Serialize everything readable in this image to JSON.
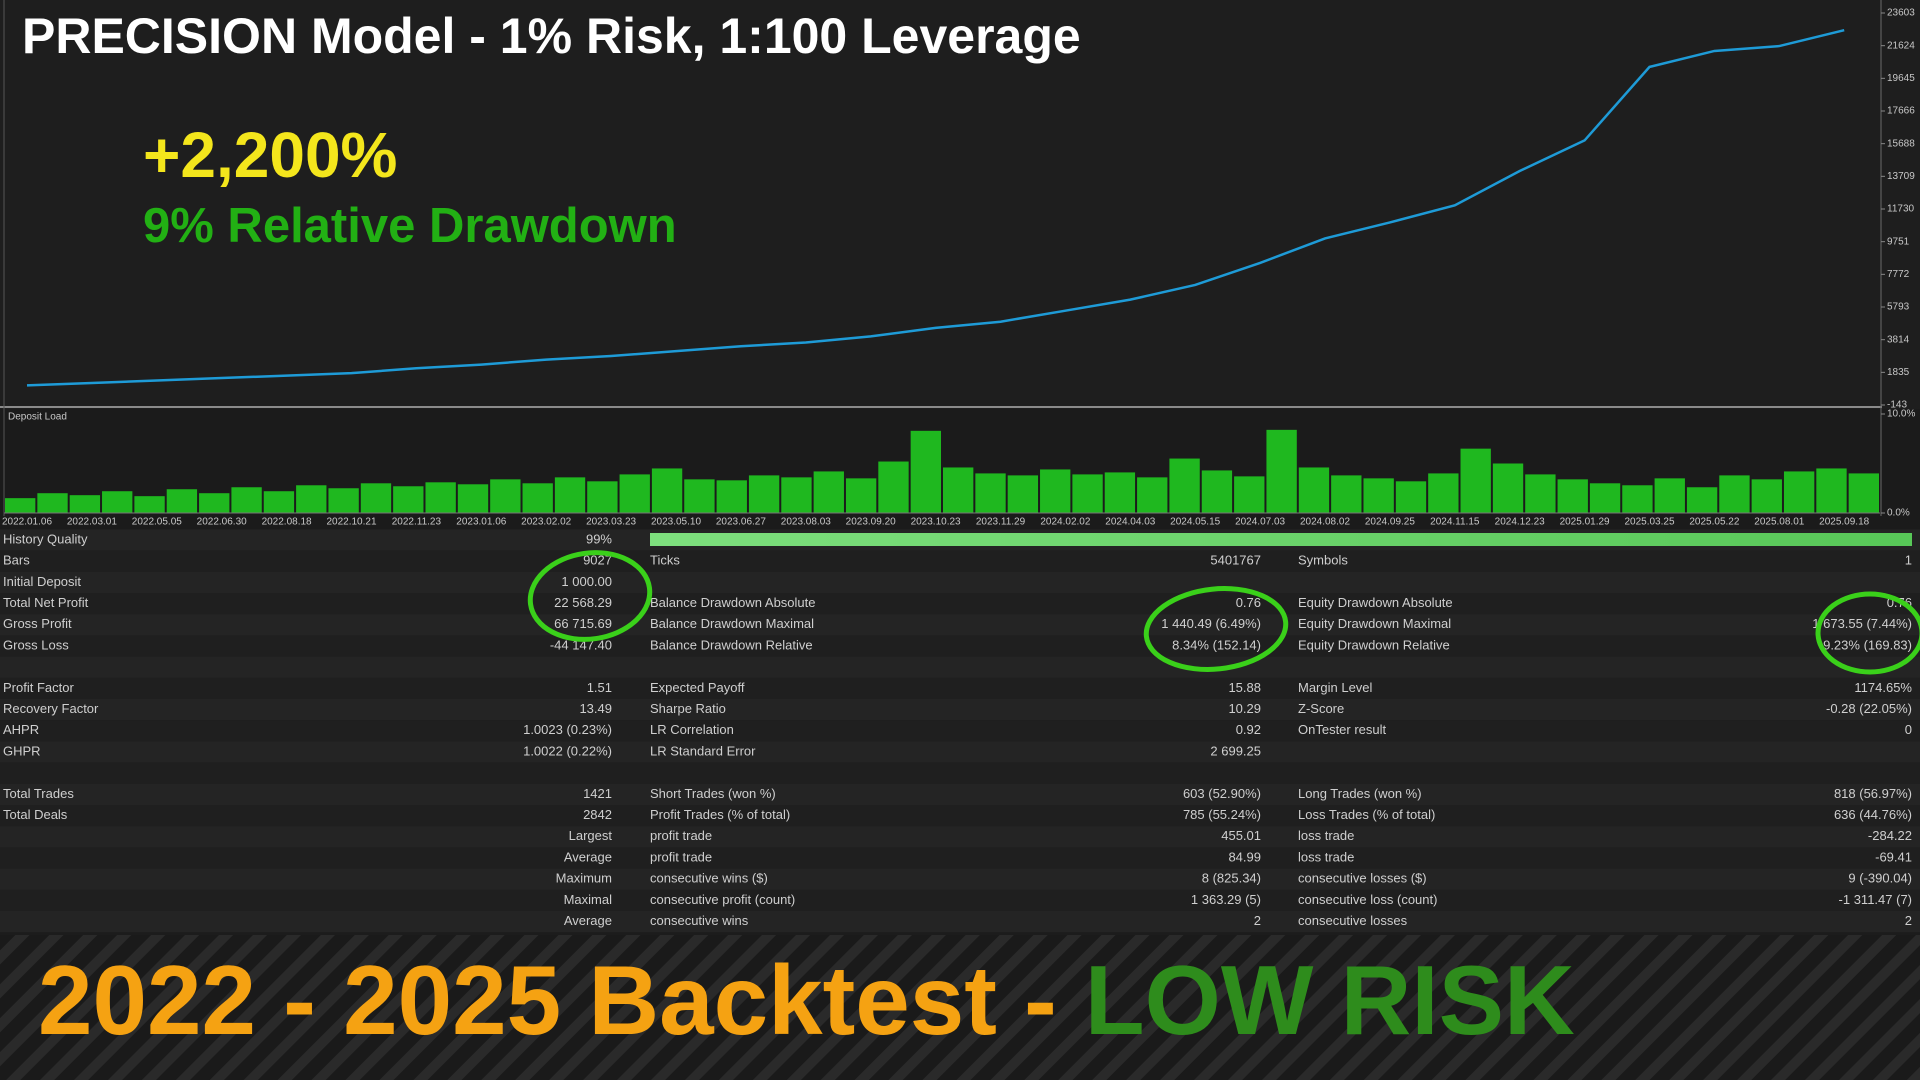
{
  "header": {
    "title": "PRECISION Model - 1% Risk, 1:100 Leverage",
    "gain": "+2,200%",
    "drawdown": "9% Relative Drawdown"
  },
  "balance_chart": {
    "type": "line",
    "color": "#1e9bd7",
    "x": [
      "2022.01.06",
      "2022.03.01",
      "2022.05.05",
      "2022.06.30",
      "2022.08.18",
      "2022.10.21",
      "2022.11.23",
      "2023.01.06",
      "2023.02.02",
      "2023.03.23",
      "2023.05.10",
      "2023.06.27",
      "2023.08.03",
      "2023.09.20",
      "2023.10.23",
      "2023.11.29",
      "2024.02.02",
      "2024.04.03",
      "2024.05.15",
      "2024.07.03",
      "2024.08.02",
      "2024.09.25",
      "2024.11.15",
      "2024.12.23",
      "2025.01.29",
      "2025.03.25",
      "2025.05.22",
      "2025.08.01",
      "2025.09.18"
    ],
    "values": [
      1044,
      1193,
      1341,
      1490,
      1638,
      1786,
      2083,
      2306,
      2603,
      2825,
      3122,
      3419,
      3642,
      4012,
      4532,
      4903,
      5571,
      6239,
      7129,
      8465,
      9949,
      10914,
      11953,
      14031,
      15886,
      20338,
      21303,
      21600,
      22564
    ],
    "ylim": [
      -143,
      23603
    ],
    "yticks": [
      23603,
      21624,
      19645,
      17666,
      15688,
      13709,
      11730,
      9751,
      7772,
      5793,
      3814,
      1835,
      -143
    ]
  },
  "deposit_load": {
    "type": "bar",
    "label": "Deposit Load",
    "color": "#1fb81f",
    "values": [
      1.5,
      2.0,
      1.8,
      2.2,
      1.7,
      2.4,
      2.0,
      2.6,
      2.2,
      2.8,
      2.5,
      3.0,
      2.7,
      3.1,
      2.9,
      3.4,
      3.0,
      3.6,
      3.2,
      3.9,
      4.5,
      3.4,
      3.3,
      3.8,
      3.6,
      4.2,
      3.5,
      5.2,
      8.3,
      4.6,
      4.0,
      3.8,
      4.4,
      3.9,
      4.1,
      3.6,
      5.5,
      4.3,
      3.7,
      8.4,
      4.6,
      3.8,
      3.5,
      3.2,
      4.0,
      6.5,
      5.0,
      3.9,
      3.4,
      3.0,
      2.8,
      3.5,
      2.6,
      3.8,
      3.4,
      4.2,
      4.5,
      4.0
    ],
    "ylim": [
      0,
      10
    ],
    "yticks": [
      {
        "value": 10,
        "label": "10.0%"
      },
      {
        "value": 0,
        "label": "0.0%"
      }
    ]
  },
  "report": {
    "rows": [
      [
        "History Quality",
        "99%"
      ],
      [
        "Bars",
        "9027",
        "Ticks",
        "5401767",
        "Symbols",
        "1"
      ],
      [
        "Initial Deposit",
        "1 000.00"
      ],
      [
        "Total Net Profit",
        "22 568.29",
        "Balance Drawdown Absolute",
        "0.76",
        "Equity Drawdown Absolute",
        "0.76"
      ],
      [
        "Gross Profit",
        "66 715.69",
        "Balance Drawdown Maximal",
        "1 440.49 (6.49%)",
        "Equity Drawdown Maximal",
        "1 673.55 (7.44%)"
      ],
      [
        "Gross Loss",
        "-44 147.40",
        "Balance Drawdown Relative",
        "8.34% (152.14)",
        "Equity Drawdown Relative",
        "9.23% (169.83)"
      ],
      [
        "Profit Factor",
        "1.51",
        "Expected Payoff",
        "15.88",
        "Margin Level",
        "1174.65%"
      ],
      [
        "Recovery Factor",
        "13.49",
        "Sharpe Ratio",
        "10.29",
        "Z-Score",
        "-0.28 (22.05%)"
      ],
      [
        "AHPR",
        "1.0023 (0.23%)",
        "LR Correlation",
        "0.92",
        "OnTester result",
        "0"
      ],
      [
        "GHPR",
        "1.0022 (0.22%)",
        "LR Standard Error",
        "2 699.25"
      ],
      [
        "Total Trades",
        "1421",
        "Short Trades (won %)",
        "603 (52.90%)",
        "Long Trades (won %)",
        "818 (56.97%)"
      ],
      [
        "Total Deals",
        "2842",
        "Profit Trades (% of total)",
        "785 (55.24%)",
        "Loss Trades (% of total)",
        "636 (44.76%)"
      ],
      [
        "Largest",
        "profit trade",
        "455.01",
        "loss trade",
        "-284.22"
      ],
      [
        "Average",
        "profit trade",
        "84.99",
        "loss trade",
        "-69.41"
      ],
      [
        "Maximum",
        "consecutive wins ($)",
        "8 (825.34)",
        "consecutive losses ($)",
        "9 (-390.04)"
      ],
      [
        "Maximal",
        "consecutive profit (count)",
        "1 363.29 (5)",
        "consecutive loss (count)",
        "-1 311.47 (7)"
      ],
      [
        "Average",
        "consecutive wins",
        "2",
        "consecutive losses",
        "2"
      ]
    ]
  },
  "footer": {
    "period": "2022 - 2025 Backtest -",
    "risk": "LOW RISK"
  }
}
